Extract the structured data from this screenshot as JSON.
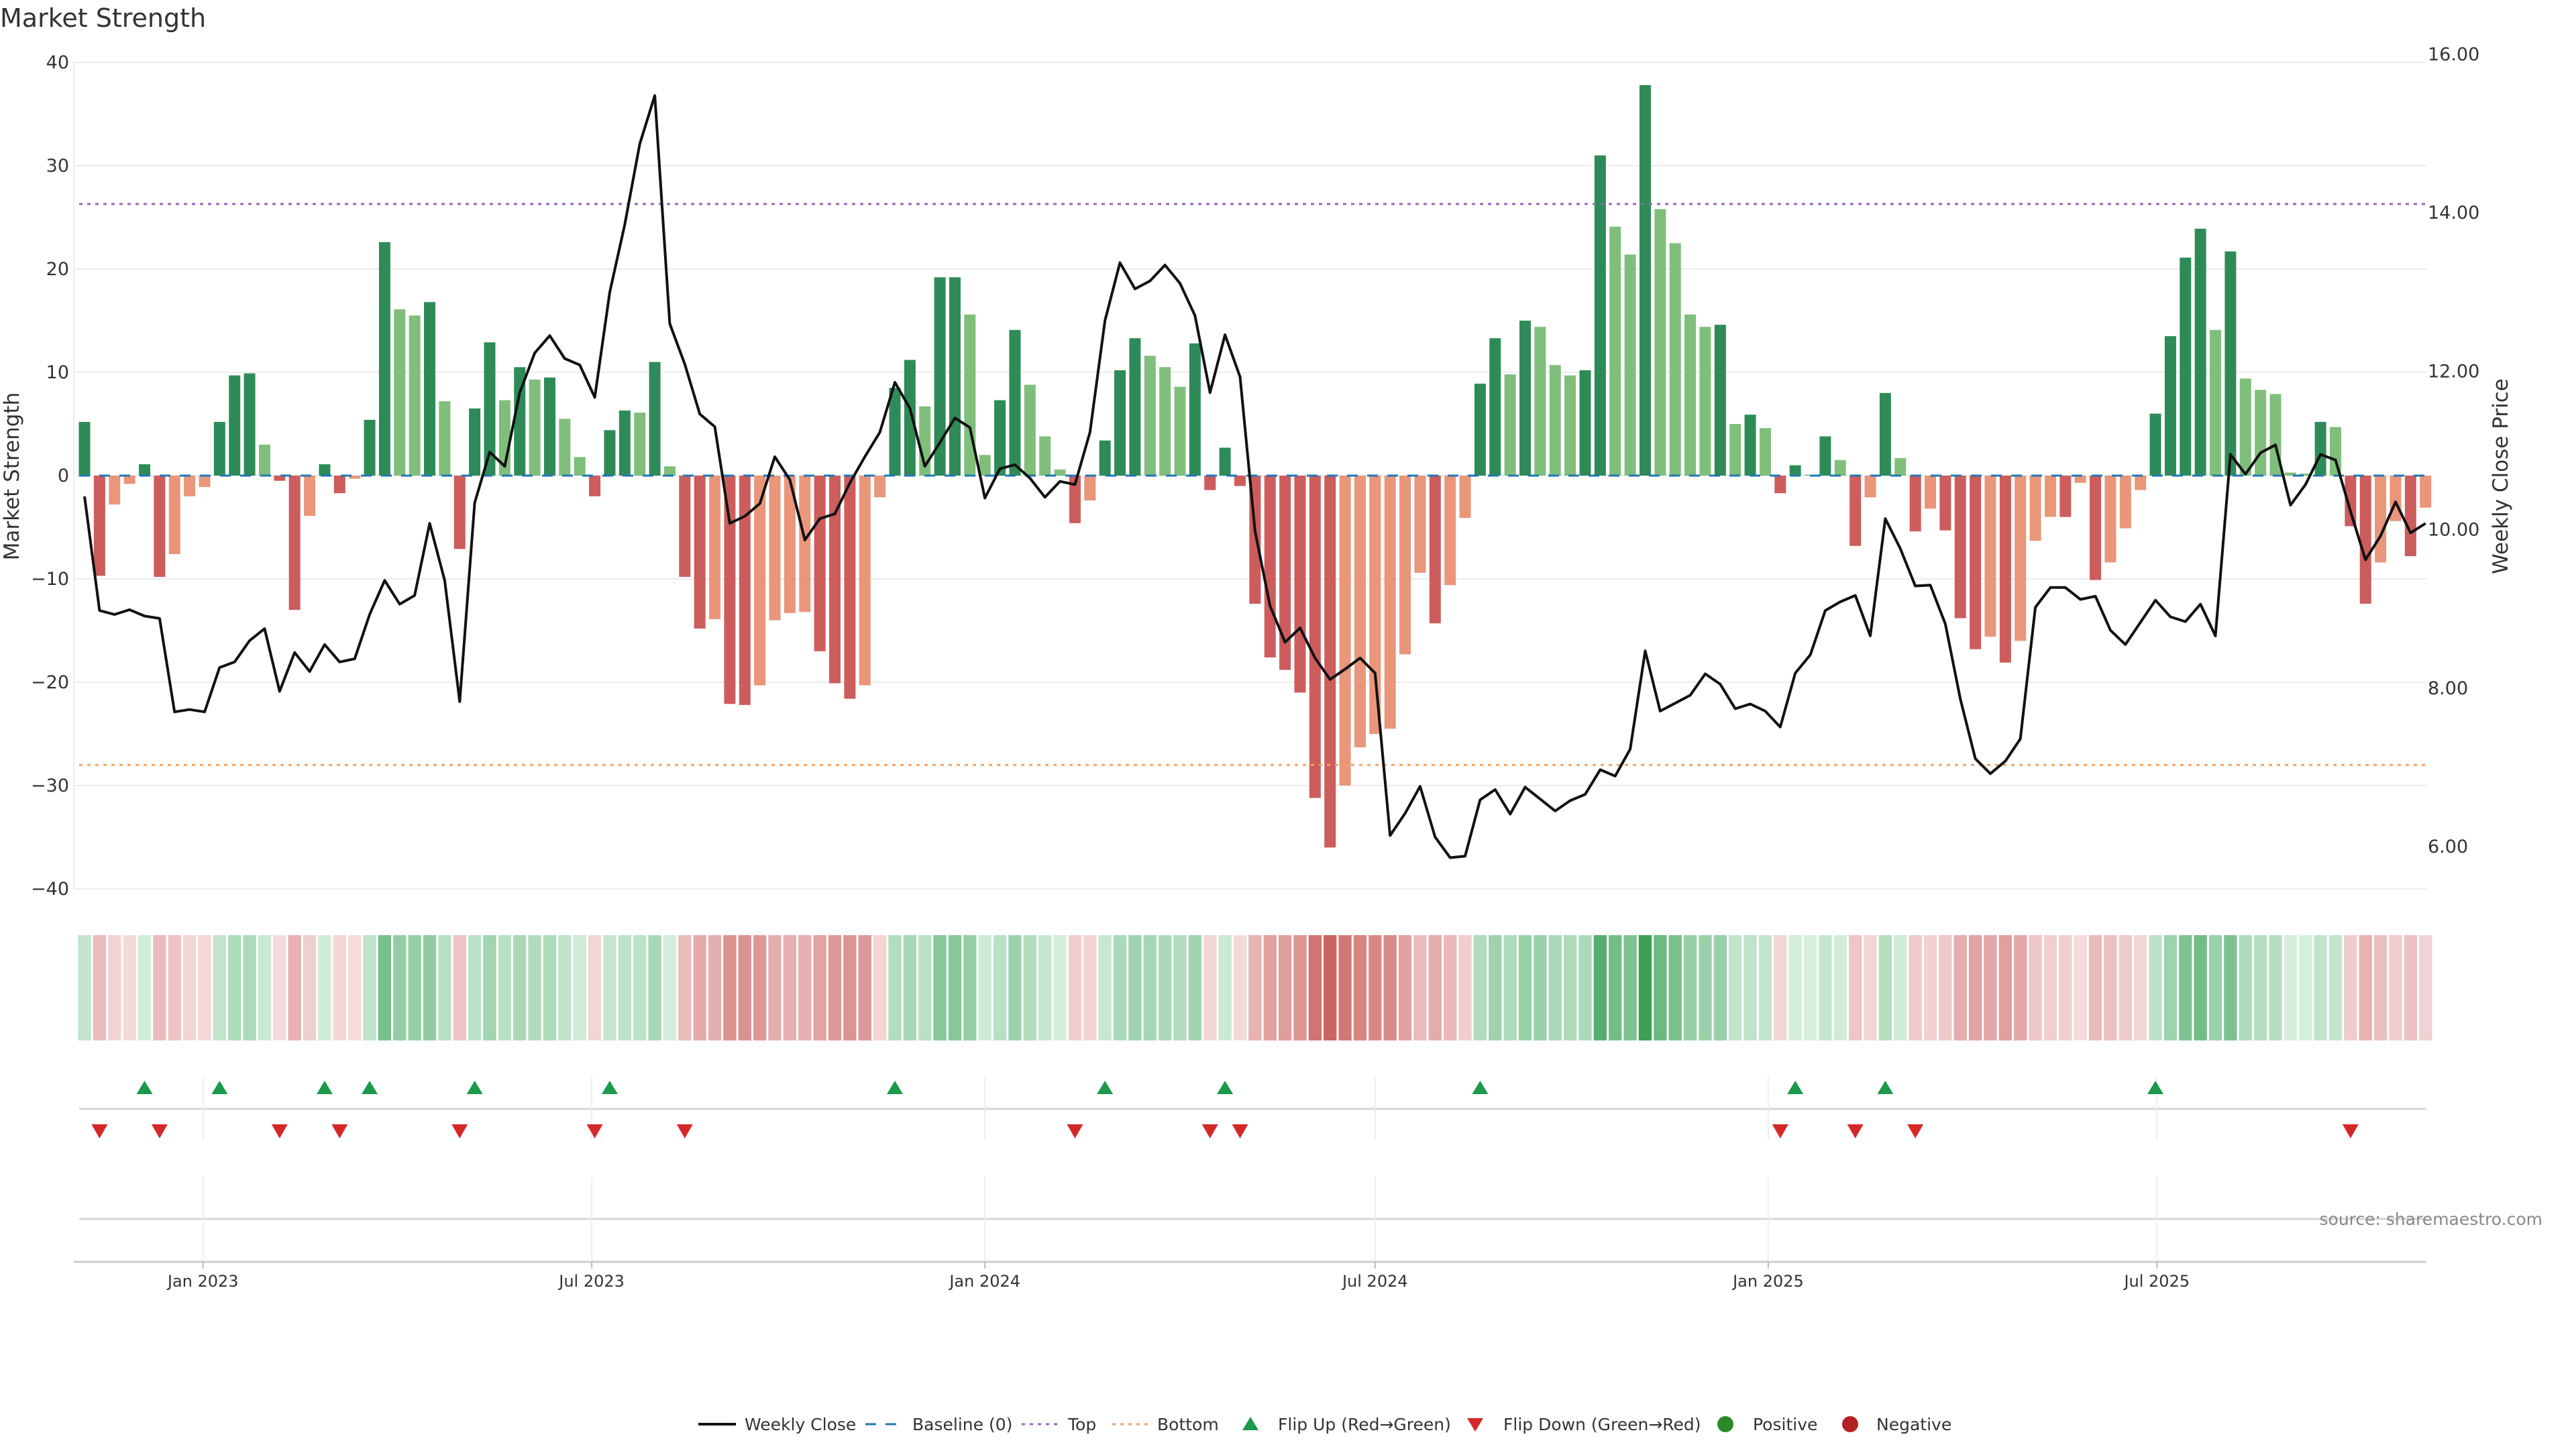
{
  "chart_data": {
    "type": "bar",
    "title": "Market Strength",
    "ylabel": "Market Strength",
    "y2label": "Weekly Close Price",
    "ylim": [
      -40,
      40
    ],
    "y2lim": [
      6,
      16
    ],
    "yticks": [
      40,
      30,
      20,
      10,
      0,
      -10,
      -20,
      -30,
      -40
    ],
    "y2ticks": [
      "16.00",
      "14.00",
      "12.00",
      "10.00",
      "8.00",
      "6.00"
    ],
    "y2tick_values": [
      16,
      14,
      12,
      10,
      8,
      6
    ],
    "top_level": 26.3,
    "bottom_level": -28,
    "baseline": 0,
    "x_ticks": [
      {
        "label": "Jan 2023",
        "week_index": 7.9
      },
      {
        "label": "Jul 2023",
        "week_index": 33.8
      },
      {
        "label": "Jan 2024",
        "week_index": 60.0
      },
      {
        "label": "Jul 2024",
        "week_index": 86.0
      },
      {
        "label": "Jan 2025",
        "week_index": 112.2
      },
      {
        "label": "Jul 2025",
        "week_index": 138.1
      }
    ],
    "strength": [
      5.2,
      -9.7,
      -2.8,
      -0.8,
      1.1,
      -9.8,
      -7.6,
      -2,
      -1.1,
      5.2,
      9.7,
      9.9,
      3,
      -0.5,
      -13,
      -3.9,
      1.1,
      -1.7,
      -0.3,
      5.4,
      22.6,
      16.1,
      15.5,
      16.8,
      7.2,
      -7.1,
      6.5,
      12.9,
      7.3,
      10.5,
      9.3,
      9.5,
      5.5,
      1.8,
      -2,
      4.4,
      6.3,
      6.1,
      11,
      0.9,
      -9.8,
      -14.8,
      -13.9,
      -22.1,
      -22.2,
      -20.3,
      -14,
      -13.3,
      -13.2,
      -17,
      -20.1,
      -21.6,
      -20.3,
      -2.1,
      8.5,
      11.2,
      6.7,
      19.2,
      19.2,
      15.6,
      2,
      7.3,
      14.1,
      8.8,
      3.8,
      0.6,
      -4.6,
      -2.4,
      3.4,
      10.2,
      13.3,
      11.6,
      10.5,
      8.6,
      12.8,
      -1.4,
      2.7,
      -1,
      -12.4,
      -17.6,
      -18.8,
      -21,
      -31.2,
      -36,
      -30,
      -26.3,
      -25,
      -24.5,
      -17.3,
      -9.4,
      -14.3,
      -10.6,
      -4.1,
      8.9,
      13.3,
      9.8,
      15,
      14.4,
      10.7,
      9.7,
      10.2,
      31,
      24.1,
      21.4,
      37.8,
      25.8,
      22.5,
      15.6,
      14.4,
      14.6,
      5,
      5.9,
      4.6,
      -1.7,
      1,
      0.1,
      3.8,
      1.5,
      -6.8,
      -2.1,
      8,
      1.7,
      -5.4,
      -3.2,
      -5.3,
      -13.8,
      -16.8,
      -15.6,
      -18.1,
      -16,
      -6.3,
      -4,
      -4,
      -0.7,
      -10.1,
      -8.4,
      -5.1,
      -1.4,
      6,
      13.5,
      21.1,
      23.9,
      14.1,
      21.7,
      9.4,
      8.3,
      7.9,
      0.3,
      0.2,
      5.2,
      4.7,
      -4.9,
      -12.4,
      -8.4,
      -4.4,
      -7.8,
      -3.1
    ],
    "weekly_close": [
      10.42,
      8.98,
      8.93,
      8.99,
      8.91,
      8.88,
      7.7,
      7.73,
      7.7,
      8.26,
      8.33,
      8.6,
      8.75,
      7.96,
      8.45,
      8.21,
      8.55,
      8.33,
      8.37,
      8.93,
      9.36,
      9.06,
      9.17,
      10.08,
      9.36,
      7.83,
      10.34,
      10.98,
      10.8,
      11.73,
      12.23,
      12.45,
      12.16,
      12.08,
      11.67,
      13,
      13.85,
      14.87,
      15.48,
      12.6,
      12.09,
      11.46,
      11.3,
      10.08,
      10.17,
      10.33,
      10.92,
      10.63,
      9.87,
      10.14,
      10.2,
      10.59,
      10.92,
      11.23,
      11.86,
      11.53,
      10.8,
      11.1,
      11.41,
      11.29,
      10.4,
      10.77,
      10.82,
      10.65,
      10.41,
      10.61,
      10.57,
      11.23,
      12.64,
      13.37,
      13.04,
      13.14,
      13.34,
      13.11,
      12.7,
      11.73,
      12.46,
      11.93,
      9.98,
      9.04,
      8.58,
      8.76,
      8.38,
      8.11,
      8.24,
      8.38,
      8.19,
      6.14,
      6.42,
      6.76,
      6.12,
      5.86,
      5.88,
      6.59,
      6.72,
      6.41,
      6.75,
      6.6,
      6.45,
      6.58,
      6.66,
      6.97,
      6.89,
      7.23,
      8.47,
      7.71,
      7.81,
      7.91,
      8.18,
      8.05,
      7.74,
      7.8,
      7.71,
      7.51,
      8.19,
      8.42,
      8.98,
      9.09,
      9.17,
      8.66,
      10.14,
      9.76,
      9.29,
      9.3,
      8.81,
      7.86,
      7.11,
      6.92,
      7.08,
      7.36,
      9.02,
      9.27,
      9.27,
      9.12,
      9.16,
      8.73,
      8.55,
      8.83,
      9.11,
      8.9,
      8.84,
      9.06,
      8.66,
      10.95,
      10.7,
      10.97,
      11.07,
      10.31,
      10.57,
      10.95,
      10.88,
      10.23,
      9.62,
      9.92,
      10.35,
      9.96,
      10.08
    ],
    "legend": {
      "placement": "bottom-center",
      "items": [
        {
          "label": "Weekly Close",
          "kind": "line"
        },
        {
          "label": "Baseline (0)",
          "kind": "dash"
        },
        {
          "label": "Top",
          "kind": "dot-purple"
        },
        {
          "label": "Bottom",
          "kind": "dot-orange"
        },
        {
          "label": "Flip Up (Red→Green)",
          "kind": "tri-up"
        },
        {
          "label": "Flip Down (Green→Red)",
          "kind": "tri-down"
        },
        {
          "label": "Positive",
          "kind": "circle-green"
        },
        {
          "label": "Negative",
          "kind": "circle-red"
        }
      ]
    },
    "colors": {
      "rising_positive": "#2e8b57",
      "falling_positive": "#7fbf7b",
      "falling_negative": "#cd5c5c",
      "rising_negative": "#e9967a",
      "baseline": "#1f77b4",
      "top": "#9467bd",
      "bottom": "#f4a261",
      "flip_up": "#1a9a4a",
      "flip_down": "#d62728",
      "price_line": "#111111"
    },
    "grid": true
  },
  "source": "source: sharemaestro.com"
}
